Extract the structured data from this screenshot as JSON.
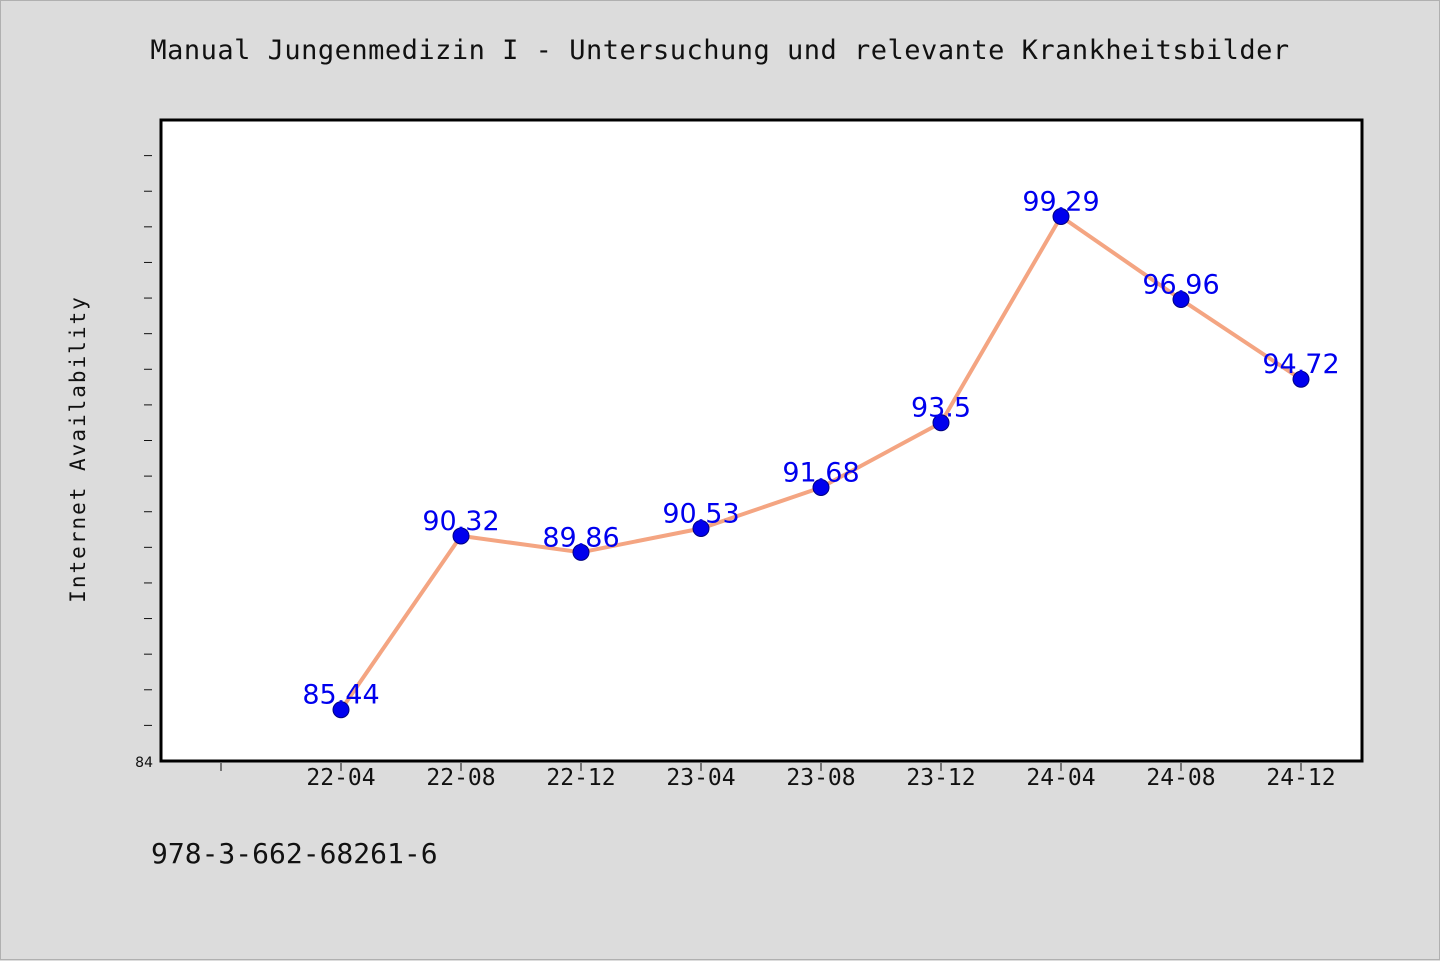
{
  "title": "Manual Jungenmedizin I - Untersuchung und relevante Krankheitsbilder",
  "footer_text": "978-3-662-68261-6",
  "chart_data": {
    "type": "line",
    "title": "Manual Jungenmedizin I - Untersuchung und relevante Krankheitsbilder",
    "xlabel": "",
    "ylabel": "Internet Availability",
    "categories": [
      "22-04",
      "22-08",
      "22-12",
      "23-04",
      "23-08",
      "23-12",
      "24-04",
      "24-08",
      "24-12"
    ],
    "series": [
      {
        "values": [
          85.44,
          90.32,
          89.86,
          90.53,
          91.68,
          93.5,
          99.29,
          96.96,
          94.72
        ],
        "data_labels": [
          "85.44",
          "90.32",
          "89.86",
          "90.53",
          "91.68",
          "93.5",
          "99.29",
          "96.96",
          "94.72"
        ],
        "line_color": "#f4a582",
        "marker_color": "#0000ee",
        "label_color": "#0000ee"
      }
    ],
    "ylim": [
      84,
      102
    ],
    "ytick_labels": [
      "84"
    ],
    "grid": false,
    "legend": "none"
  }
}
